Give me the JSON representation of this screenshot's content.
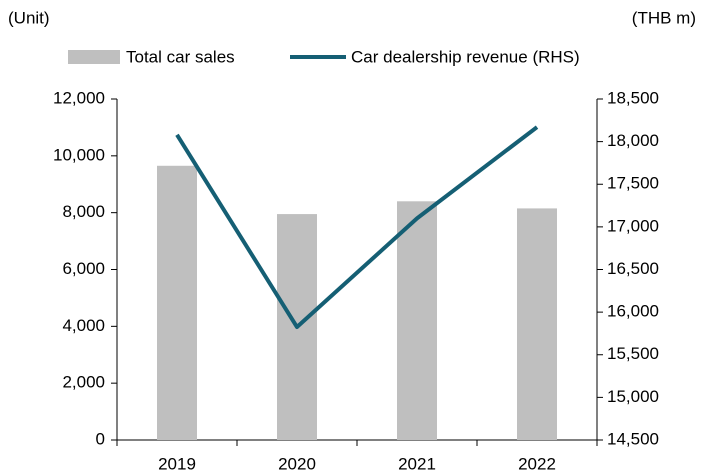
{
  "chart_data": {
    "type": "bar_line",
    "y_unit": "(Unit)",
    "y2_unit": "(THB m)",
    "categories": [
      "2019",
      "2020",
      "2021",
      "2022"
    ],
    "series": [
      {
        "name": "Total car sales",
        "type": "bar",
        "color": "#bfbfbf",
        "values": [
          9650,
          7950,
          8400,
          8150
        ]
      },
      {
        "name": "Car dealership revenue (RHS)",
        "type": "line",
        "axis": "y2",
        "color": "#155f74",
        "values": [
          18080,
          15825,
          17100,
          18170
        ]
      }
    ],
    "ylim": [
      0,
      12000
    ],
    "yticks": [
      0,
      {
        "value": 2000,
        "label": "2,000"
      },
      {
        "value": 4000,
        "label": "4,000"
      },
      {
        "value": 6000,
        "label": "6,000"
      },
      {
        "value": 8000,
        "label": "8,000"
      },
      {
        "value": 10000,
        "label": "10,000"
      },
      {
        "value": 12000,
        "label": "12,000"
      }
    ],
    "y2lim": [
      14500,
      18500
    ],
    "y2ticks": [
      {
        "value": 14500,
        "label": "14,500"
      },
      {
        "value": 15000,
        "label": "15,000"
      },
      {
        "value": 15500,
        "label": "15,500"
      },
      {
        "value": 16000,
        "label": "16,000"
      },
      {
        "value": 16500,
        "label": "16,500"
      },
      {
        "value": 17000,
        "label": "17,000"
      },
      {
        "value": 17500,
        "label": "17,500"
      },
      {
        "value": 18000,
        "label": "18,000"
      },
      {
        "value": 18500,
        "label": "18,500"
      }
    ],
    "grid": false
  }
}
